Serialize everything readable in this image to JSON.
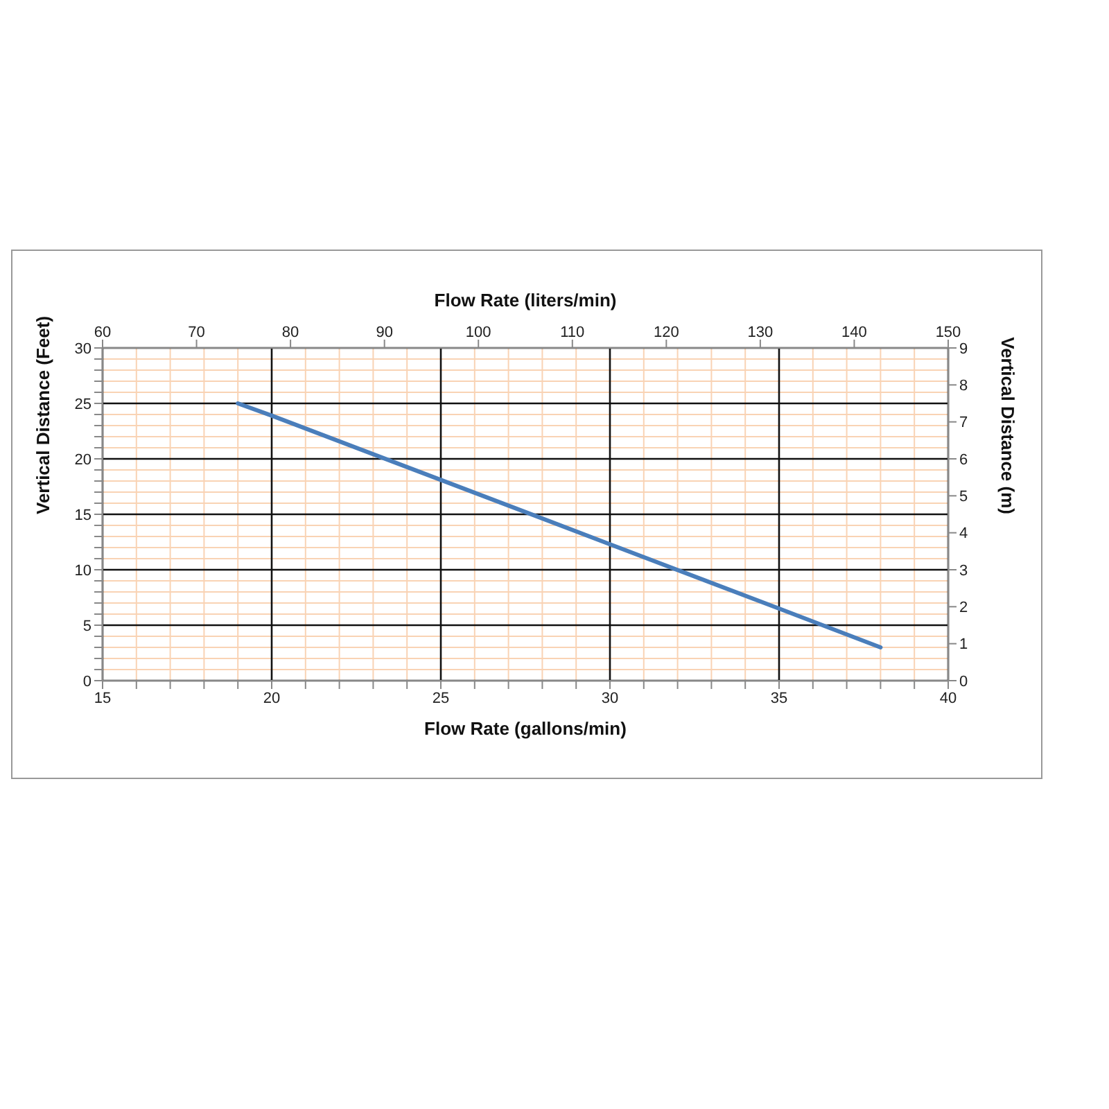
{
  "chart_data": {
    "type": "line",
    "xlabel": "Flow Rate (gallons/min)",
    "x2label": "Flow Rate (liters/min)",
    "ylabel": "Vertical Distance (Feet)",
    "y2label": "Vertical Distance (m)",
    "x": [
      19,
      20,
      25,
      30,
      35,
      38
    ],
    "series": [
      {
        "color": "#4a7ebb",
        "values": [
          25,
          23.9,
          18.1,
          12.3,
          6.5,
          3
        ]
      }
    ],
    "xlim": [
      15,
      40
    ],
    "xticks": [
      15,
      {
        "value": 16,
        "label": null
      },
      {
        "value": 17,
        "label": null
      },
      {
        "value": 18,
        "label": null
      },
      {
        "value": 19,
        "label": null
      },
      20,
      {
        "value": 21,
        "label": null
      },
      {
        "value": 22,
        "label": null
      },
      {
        "value": 23,
        "label": null
      },
      {
        "value": 24,
        "label": null
      },
      25,
      {
        "value": 26,
        "label": null
      },
      {
        "value": 27,
        "label": null
      },
      {
        "value": 28,
        "label": null
      },
      {
        "value": 29,
        "label": null
      },
      30,
      {
        "value": 31,
        "label": null
      },
      {
        "value": 32,
        "label": null
      },
      {
        "value": 33,
        "label": null
      },
      {
        "value": 34,
        "label": null
      },
      35,
      {
        "value": 36,
        "label": null
      },
      {
        "value": 37,
        "label": null
      },
      {
        "value": 38,
        "label": null
      },
      {
        "value": 39,
        "label": null
      },
      40
    ],
    "x2lim": [
      60,
      150
    ],
    "x2ticks": [
      60,
      70,
      80,
      90,
      100,
      110,
      120,
      130,
      140,
      150
    ],
    "ylim": [
      0,
      30
    ],
    "yticks": [
      0,
      {
        "value": 1,
        "label": null
      },
      {
        "value": 2,
        "label": null
      },
      {
        "value": 3,
        "label": null
      },
      {
        "value": 4,
        "label": null
      },
      5,
      {
        "value": 6,
        "label": null
      },
      {
        "value": 7,
        "label": null
      },
      {
        "value": 8,
        "label": null
      },
      {
        "value": 9,
        "label": null
      },
      10,
      {
        "value": 11,
        "label": null
      },
      {
        "value": 12,
        "label": null
      },
      {
        "value": 13,
        "label": null
      },
      {
        "value": 14,
        "label": null
      },
      15,
      {
        "value": 16,
        "label": null
      },
      {
        "value": 17,
        "label": null
      },
      {
        "value": 18,
        "label": null
      },
      {
        "value": 19,
        "label": null
      },
      20,
      {
        "value": 21,
        "label": null
      },
      {
        "value": 22,
        "label": null
      },
      {
        "value": 23,
        "label": null
      },
      {
        "value": 24,
        "label": null
      },
      25,
      {
        "value": 26,
        "label": null
      },
      {
        "value": 27,
        "label": null
      },
      {
        "value": 28,
        "label": null
      },
      {
        "value": 29,
        "label": null
      },
      30
    ],
    "y2lim": [
      0,
      9
    ],
    "y2ticks": [
      0,
      1,
      2,
      3,
      4,
      5,
      6,
      7,
      8,
      9
    ],
    "grid": true,
    "marker": "none",
    "line_style": "solid"
  }
}
